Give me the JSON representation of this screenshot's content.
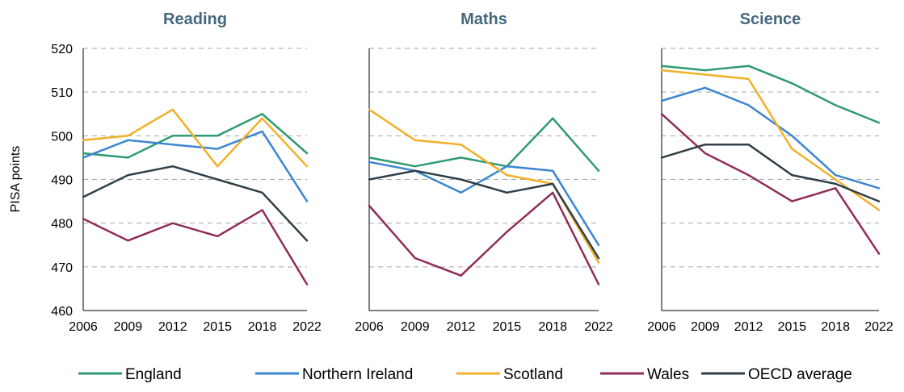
{
  "chart_data": {
    "type": "line",
    "ylabel": "PISA points",
    "ylim": [
      460,
      520
    ],
    "yticks": [
      460,
      470,
      480,
      490,
      500,
      510,
      520
    ],
    "categories": [
      "2006",
      "2009",
      "2012",
      "2015",
      "2018",
      "2022"
    ],
    "grid": "horizontal dashed",
    "legend_position": "bottom",
    "series_colors": {
      "England": "#2e9a73",
      "Northern Ireland": "#3c86d0",
      "Scotland": "#f1b028",
      "Wales": "#8e2d5a",
      "OECD average": "#2f3f48"
    },
    "legend": [
      "England",
      "Northern Ireland",
      "Scotland",
      "Wales",
      "OECD average"
    ],
    "panels": [
      {
        "title": "Reading",
        "series": [
          {
            "name": "England",
            "values": [
              496,
              495,
              500,
              500,
              505,
              496
            ]
          },
          {
            "name": "Northern Ireland",
            "values": [
              495,
              499,
              498,
              497,
              501,
              485
            ]
          },
          {
            "name": "Scotland",
            "values": [
              499,
              500,
              506,
              493,
              504,
              493
            ]
          },
          {
            "name": "Wales",
            "values": [
              481,
              476,
              480,
              477,
              483,
              466
            ]
          },
          {
            "name": "OECD average",
            "values": [
              486,
              491,
              493,
              490,
              487,
              476
            ]
          }
        ]
      },
      {
        "title": "Maths",
        "series": [
          {
            "name": "England",
            "values": [
              495,
              493,
              495,
              493,
              504,
              492
            ]
          },
          {
            "name": "Northern Ireland",
            "values": [
              494,
              492,
              487,
              493,
              492,
              475
            ]
          },
          {
            "name": "Scotland",
            "values": [
              506,
              499,
              498,
              491,
              489,
              471
            ]
          },
          {
            "name": "Wales",
            "values": [
              484,
              472,
              468,
              478,
              487,
              466
            ]
          },
          {
            "name": "OECD average",
            "values": [
              490,
              492,
              490,
              487,
              489,
              472
            ]
          }
        ]
      },
      {
        "title": "Science",
        "series": [
          {
            "name": "England",
            "values": [
              516,
              515,
              516,
              512,
              507,
              503
            ]
          },
          {
            "name": "Northern Ireland",
            "values": [
              508,
              511,
              507,
              500,
              491,
              488
            ]
          },
          {
            "name": "Scotland",
            "values": [
              515,
              514,
              513,
              497,
              490,
              483
            ]
          },
          {
            "name": "Wales",
            "values": [
              505,
              496,
              491,
              485,
              488,
              473
            ]
          },
          {
            "name": "OECD average",
            "values": [
              495,
              498,
              498,
              491,
              489,
              485
            ]
          }
        ]
      }
    ]
  }
}
